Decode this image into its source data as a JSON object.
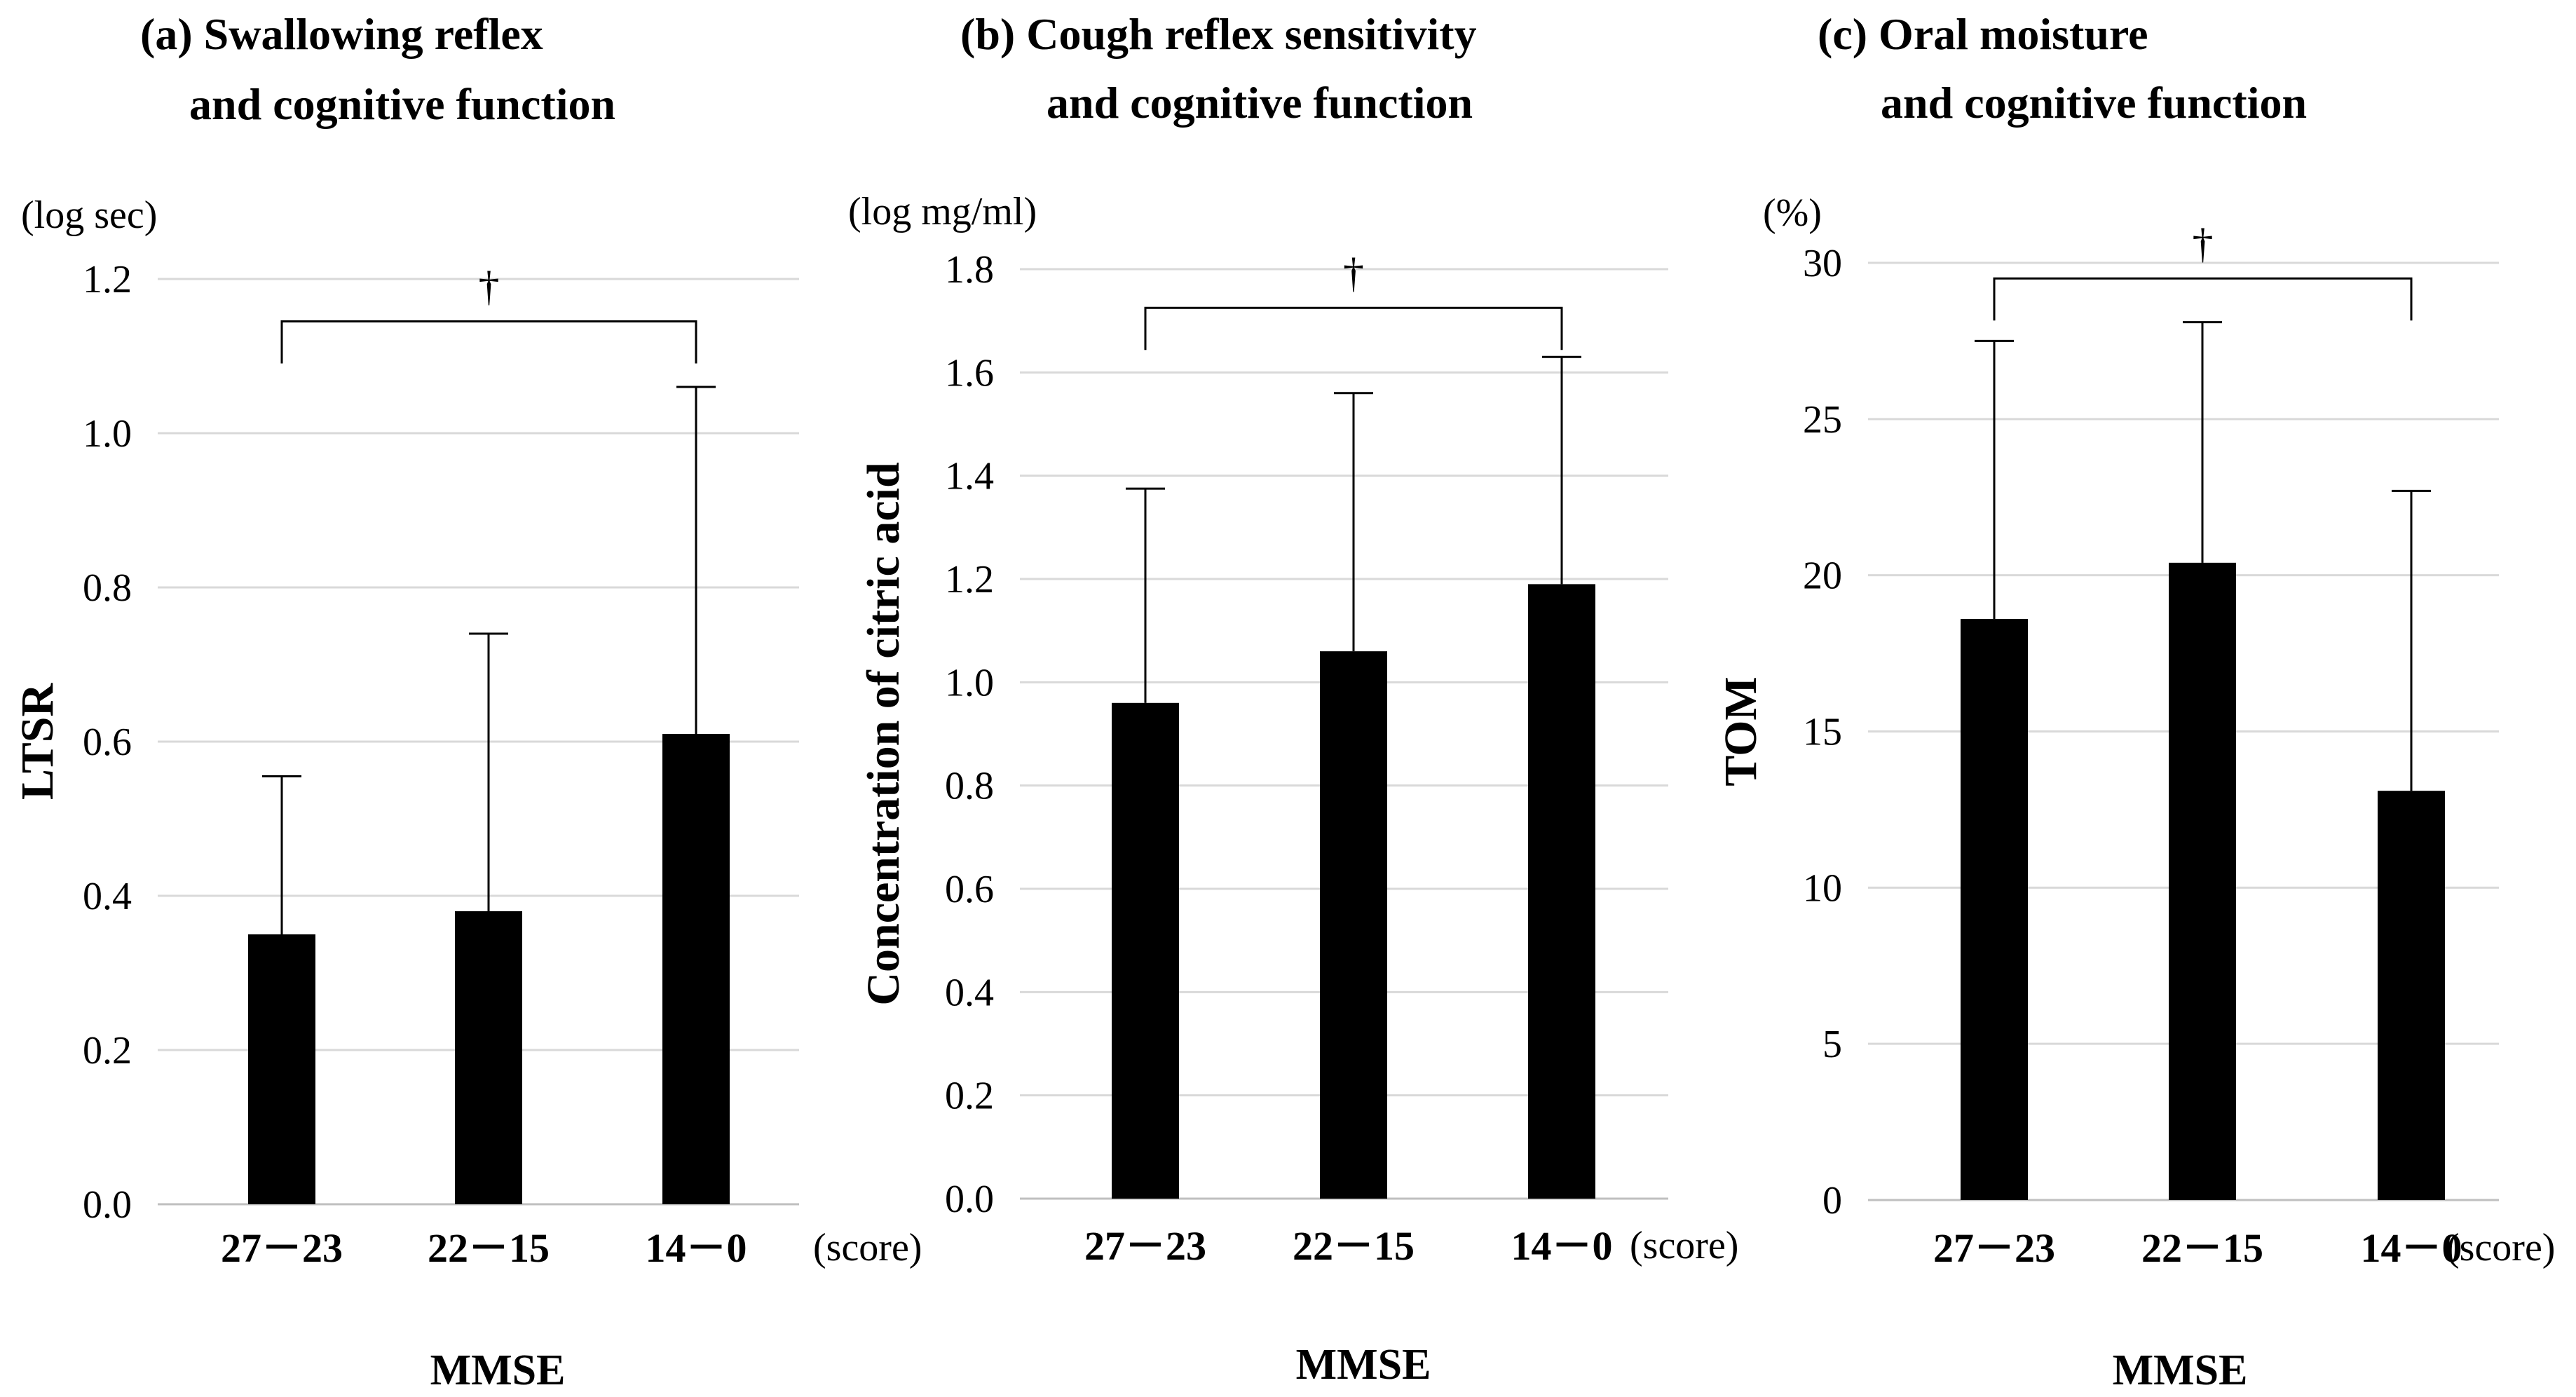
{
  "chart_data": [
    {
      "type": "bar",
      "panel": "a",
      "title_lines": [
        "(a) Swallowing reflex",
        "and cognitive function"
      ],
      "unit": "(log sec)",
      "ylabel": "LTSR",
      "xlabel": "MMSE",
      "categories": [
        "27－23",
        "22－15",
        "14－0"
      ],
      "category_suffix": "(score)",
      "values": [
        0.35,
        0.38,
        0.61
      ],
      "error_upper": [
        0.555,
        0.74,
        1.06
      ],
      "ylim": [
        0.0,
        1.2
      ],
      "yticks": [
        0.0,
        0.2,
        0.4,
        0.6,
        0.8,
        1.0,
        1.2
      ],
      "ytick_labels": [
        "0.0",
        "0.2",
        "0.4",
        "0.6",
        "0.8",
        "1.0",
        "1.2"
      ],
      "grid": true,
      "significance": {
        "from": 0,
        "to": 2,
        "marker": "†",
        "level": 1.145
      }
    },
    {
      "type": "bar",
      "panel": "b",
      "title_lines": [
        "(b) Cough reflex sensitivity",
        "and cognitive function"
      ],
      "unit": "(log mg/ml)",
      "ylabel": "Concentration of citric acid",
      "xlabel": "MMSE",
      "categories": [
        "27－23",
        "22－15",
        "14－0"
      ],
      "category_suffix": "(score)",
      "values": [
        0.96,
        1.06,
        1.19
      ],
      "error_upper": [
        1.375,
        1.56,
        1.63
      ],
      "ylim": [
        0.0,
        1.8
      ],
      "yticks": [
        0.0,
        0.2,
        0.4,
        0.6,
        0.8,
        1.0,
        1.2,
        1.4,
        1.6,
        1.8
      ],
      "ytick_labels": [
        "0.0",
        "0.2",
        "0.4",
        "0.6",
        "0.8",
        "1.0",
        "1.2",
        "1.4",
        "1.6",
        "1.8"
      ],
      "grid": true,
      "significance": {
        "from": 0,
        "to": 2,
        "marker": "†",
        "level": 1.725
      }
    },
    {
      "type": "bar",
      "panel": "c",
      "title_lines": [
        "(c) Oral moisture",
        "and cognitive function"
      ],
      "unit": "(%)",
      "ylabel": "TOM",
      "xlabel": "MMSE",
      "categories": [
        "27－23",
        "22－15",
        "14－0"
      ],
      "category_suffix": "(score)",
      "values": [
        18.6,
        20.4,
        13.1
      ],
      "error_upper": [
        27.5,
        28.1,
        22.7
      ],
      "ylim": [
        0,
        30
      ],
      "yticks": [
        0,
        5,
        10,
        15,
        20,
        25,
        30
      ],
      "ytick_labels": [
        "0",
        "5",
        "10",
        "15",
        "20",
        "25",
        "30"
      ],
      "grid": true,
      "significance": {
        "from": 0,
        "to": 2,
        "marker": "†",
        "level": 29.5
      }
    }
  ]
}
